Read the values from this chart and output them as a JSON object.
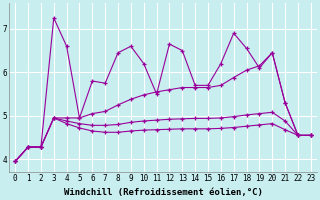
{
  "xlabel": "Windchill (Refroidissement éolien,°C)",
  "background_color": "#c8eef0",
  "line_color": "#990099",
  "grid_color": "#ffffff",
  "x": [
    0,
    1,
    2,
    3,
    4,
    5,
    6,
    7,
    8,
    9,
    10,
    11,
    12,
    13,
    14,
    15,
    16,
    17,
    18,
    19,
    20,
    21,
    22,
    23
  ],
  "series": [
    [
      3.95,
      4.28,
      4.28,
      7.25,
      6.6,
      4.95,
      5.8,
      5.75,
      6.45,
      6.6,
      6.2,
      5.5,
      6.65,
      6.5,
      5.7,
      5.7,
      6.2,
      6.9,
      6.55,
      6.1,
      6.45,
      5.3,
      4.55,
      4.55
    ],
    [
      3.95,
      4.28,
      4.28,
      4.95,
      4.95,
      4.95,
      5.05,
      5.1,
      5.25,
      5.38,
      5.48,
      5.55,
      5.6,
      5.65,
      5.65,
      5.65,
      5.7,
      5.88,
      6.05,
      6.15,
      6.45,
      5.3,
      4.55,
      4.55
    ],
    [
      3.95,
      4.28,
      4.28,
      4.95,
      4.88,
      4.82,
      4.78,
      4.78,
      4.8,
      4.85,
      4.88,
      4.9,
      4.92,
      4.93,
      4.94,
      4.94,
      4.95,
      4.98,
      5.02,
      5.05,
      5.08,
      4.88,
      4.55,
      4.55
    ],
    [
      3.95,
      4.28,
      4.28,
      4.95,
      4.82,
      4.72,
      4.65,
      4.62,
      4.62,
      4.65,
      4.67,
      4.68,
      4.69,
      4.7,
      4.7,
      4.7,
      4.71,
      4.73,
      4.76,
      4.79,
      4.82,
      4.68,
      4.55,
      4.55
    ]
  ],
  "ylim": [
    3.7,
    7.6
  ],
  "yticks": [
    4,
    5,
    6,
    7
  ],
  "xtick_labels": [
    "0",
    "1",
    "2",
    "3",
    "4",
    "5",
    "6",
    "7",
    "8",
    "9",
    "10",
    "11",
    "12",
    "13",
    "14",
    "15",
    "16",
    "17",
    "18",
    "19",
    "20",
    "21",
    "22",
    "23"
  ],
  "tick_fontsize": 5.5,
  "axis_fontsize": 6.5
}
